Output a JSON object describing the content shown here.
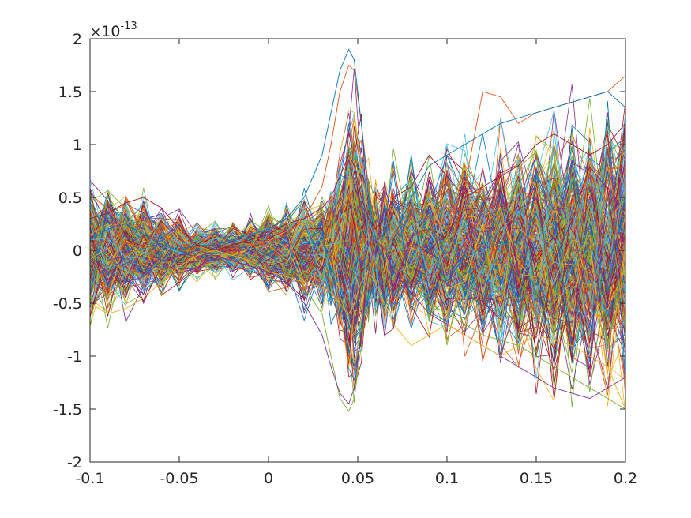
{
  "chart_data": {
    "type": "line",
    "title": "",
    "xlabel": "",
    "ylabel": "",
    "xlim": [
      -0.1,
      0.2
    ],
    "ylim": [
      -2,
      2
    ],
    "y_scale_factor": {
      "base": "10",
      "exponent": "-13",
      "prefix": "×"
    },
    "x_ticks": [
      "-0.1",
      "-0.05",
      "0",
      "0.05",
      "0.1",
      "0.15",
      "0.2"
    ],
    "x_tick_values": [
      -0.1,
      -0.05,
      0,
      0.05,
      0.1,
      0.15,
      0.2
    ],
    "y_ticks": [
      "-2",
      "-1.5",
      "-1",
      "-0.5",
      "0",
      "0.5",
      "1",
      "1.5",
      "2"
    ],
    "y_tick_values": [
      -2,
      -1.5,
      -1,
      -0.5,
      0,
      0.5,
      1,
      1.5,
      2
    ],
    "grid": false,
    "legend": "none",
    "series_count_approx": 300,
    "colors": [
      "#0072BD",
      "#D95319",
      "#EDB120",
      "#7E2F8E",
      "#77AC30",
      "#4DBEEE",
      "#A2142F"
    ],
    "x_values": [
      -0.1,
      -0.09,
      -0.08,
      -0.07,
      -0.06,
      -0.05,
      -0.04,
      -0.03,
      -0.02,
      -0.01,
      0.0,
      0.01,
      0.02,
      0.03,
      0.035,
      0.04,
      0.045,
      0.048,
      0.052,
      0.056,
      0.06,
      0.065,
      0.07,
      0.08,
      0.09,
      0.1,
      0.11,
      0.12,
      0.13,
      0.14,
      0.15,
      0.16,
      0.17,
      0.18,
      0.19,
      0.2
    ],
    "series": [
      {
        "values": [
          0.05,
          0.1,
          0.2,
          0.25,
          0.15,
          0.05,
          0.0,
          0.0,
          0.02,
          0.05,
          0.08,
          0.15,
          0.3,
          0.6,
          1.0,
          1.5,
          1.75,
          1.7,
          1.2,
          0.6,
          0.2,
          0.0,
          0.15,
          0.4,
          0.3,
          0.2,
          0.6,
          1.5,
          1.45,
          1.2,
          1.3,
          1.35,
          1.4,
          1.45,
          1.5,
          1.65
        ]
      },
      {
        "values": [
          -0.05,
          -0.1,
          -0.2,
          -0.25,
          -0.1,
          0.0,
          0.0,
          -0.02,
          -0.05,
          -0.1,
          -0.1,
          -0.2,
          -0.35,
          -0.6,
          -1.0,
          -1.4,
          -1.52,
          -1.4,
          -0.9,
          -0.3,
          0.05,
          0.1,
          -0.05,
          -0.3,
          -0.5,
          -0.6,
          -0.7,
          -0.8,
          -0.85,
          -0.9,
          -1.0,
          -1.1,
          -1.2,
          -1.3,
          -1.4,
          -1.5
        ]
      },
      {
        "values": [
          0.1,
          0.2,
          0.25,
          0.15,
          0.05,
          0.0,
          0.05,
          0.05,
          0.1,
          0.15,
          0.2,
          0.3,
          0.5,
          0.9,
          1.3,
          1.7,
          1.9,
          1.8,
          1.2,
          0.5,
          0.1,
          -0.1,
          0.1,
          0.5,
          0.8,
          0.9,
          1.0,
          1.1,
          1.2,
          1.25,
          1.3,
          1.35,
          1.4,
          1.45,
          1.5,
          1.35
        ]
      },
      {
        "values": [
          -0.1,
          -0.2,
          -0.3,
          -0.25,
          -0.1,
          -0.05,
          0.0,
          -0.05,
          -0.1,
          -0.15,
          -0.2,
          -0.3,
          -0.5,
          -0.8,
          -1.1,
          -1.35,
          -1.45,
          -1.3,
          -0.8,
          -0.2,
          0.1,
          0.0,
          -0.2,
          -0.4,
          -0.6,
          -0.7,
          -0.8,
          -0.9,
          -1.0,
          -1.1,
          -1.2,
          -1.3,
          -1.35,
          -1.4,
          -1.3,
          -1.2
        ]
      },
      {
        "values": [
          0.3,
          0.35,
          0.45,
          0.5,
          0.4,
          0.2,
          0.05,
          0.0,
          0.05,
          0.1,
          0.15,
          0.25,
          0.3,
          0.4,
          0.5,
          0.7,
          0.9,
          0.8,
          0.5,
          0.3,
          0.2,
          0.3,
          0.5,
          0.6,
          0.9,
          0.7,
          0.5,
          0.6,
          0.7,
          0.8,
          1.0,
          1.1,
          1.0,
          0.9,
          1.0,
          1.2
        ]
      },
      {
        "values": [
          -0.5,
          -0.6,
          -0.55,
          -0.45,
          -0.3,
          -0.15,
          -0.05,
          0.0,
          -0.05,
          -0.1,
          -0.2,
          -0.25,
          -0.3,
          -0.35,
          -0.4,
          -0.5,
          -0.6,
          -0.5,
          -0.3,
          -0.2,
          -0.3,
          -0.5,
          -0.7,
          -0.9,
          -0.8,
          -0.7,
          -0.8,
          -0.9,
          -1.0,
          -0.9,
          -0.8,
          -0.85,
          -0.9,
          -1.0,
          -1.1,
          -1.5
        ]
      }
    ]
  }
}
